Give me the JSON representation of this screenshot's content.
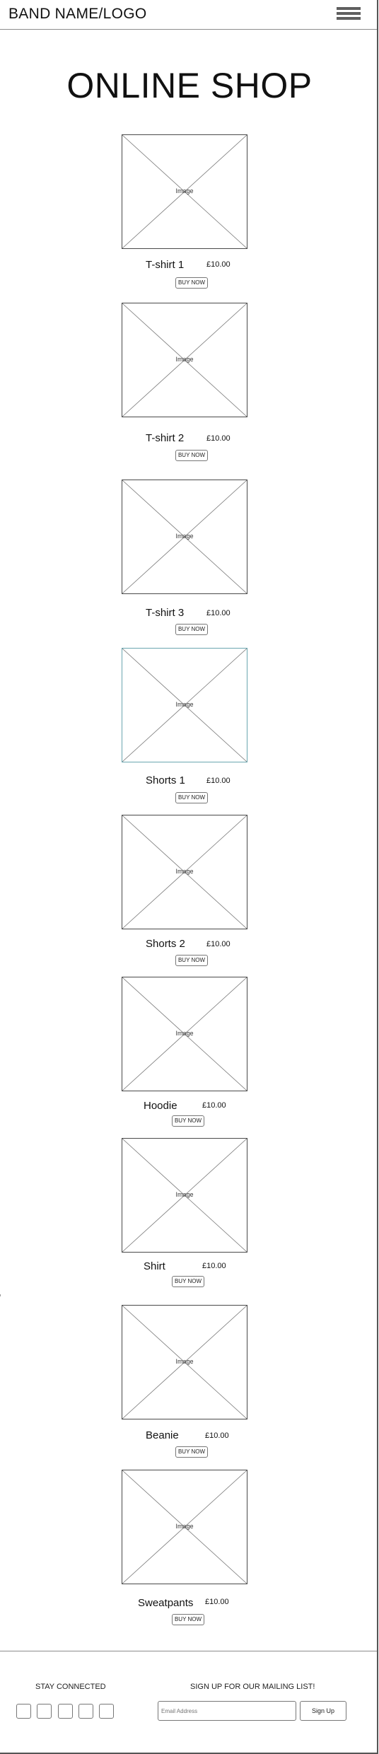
{
  "header": {
    "logo": "BAND NAME/LOGO",
    "menu_icon": "hamburger-menu-icon"
  },
  "page_title": "ONLINE SHOP",
  "products": [
    {
      "name": "T-shirt 1",
      "price": "£10.00",
      "button": "BUY NOW",
      "image_label": "Image"
    },
    {
      "name": "T-shirt 2",
      "price": "£10.00",
      "button": "BUY NOW",
      "image_label": "Image"
    },
    {
      "name": "T-shirt 3",
      "price": "£10.00",
      "button": "BUY NOW",
      "image_label": "Image"
    },
    {
      "name": "Shorts 1",
      "price": "£10.00",
      "button": "BUY NOW",
      "image_label": "Image"
    },
    {
      "name": "Shorts 2",
      "price": "£10.00",
      "button": "BUY NOW",
      "image_label": "Image"
    },
    {
      "name": "Hoodie",
      "price": "£10.00",
      "button": "BUY NOW",
      "image_label": "Image"
    },
    {
      "name": "Shirt",
      "price": "£10.00",
      "button": "BUY NOW",
      "image_label": "Image"
    },
    {
      "name": "Beanie",
      "price": "£10.00",
      "button": "BUY NOW",
      "image_label": "Image"
    },
    {
      "name": "Sweatpants",
      "price": "£10.00",
      "button": "BUY NOW",
      "image_label": "Image"
    }
  ],
  "footer": {
    "stay_connected": "STAY CONNECTED",
    "social_icons": [
      "social-icon-1",
      "social-icon-2",
      "social-icon-3",
      "social-icon-4",
      "social-icon-5"
    ],
    "mailing_heading": "SIGN UP FOR OUR MAILING LIST!",
    "email_placeholder": "Email Address",
    "signup_button": "Sign Up"
  }
}
